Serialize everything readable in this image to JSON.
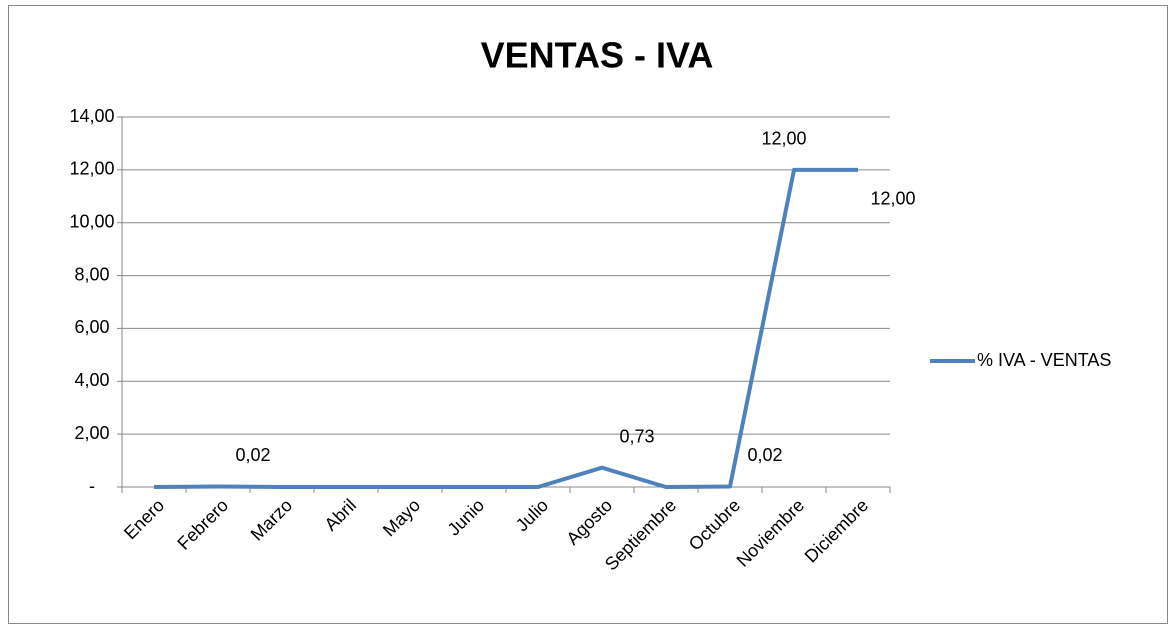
{
  "chart_data": {
    "type": "line",
    "title": "VENTAS - IVA",
    "categories": [
      "Enero",
      "Febrero",
      "Marzo",
      "Abril",
      "Mayo",
      "Junio",
      "Julio",
      "Agosto",
      "Septiembre",
      "Octubre",
      "Noviembre",
      "Diciembre"
    ],
    "series": [
      {
        "name": "% IVA - VENTAS",
        "color": "#4f81bd",
        "values": [
          0,
          0.02,
          0,
          0,
          0,
          0,
          0,
          0.73,
          0,
          0.02,
          12,
          12
        ],
        "value_labels": [
          null,
          "0,02",
          null,
          null,
          null,
          null,
          null,
          "0,73",
          null,
          "0,02",
          "12,00",
          "12,00"
        ]
      }
    ],
    "ylim": [
      0,
      14
    ],
    "yticks": [
      {
        "value": 0,
        "label": "-"
      },
      {
        "value": 2,
        "label": "2,00"
      },
      {
        "value": 4,
        "label": "4,00"
      },
      {
        "value": 6,
        "label": "6,00"
      },
      {
        "value": 8,
        "label": "8,00"
      },
      {
        "value": 10,
        "label": "10,00"
      },
      {
        "value": 12,
        "label": "12,00"
      },
      {
        "value": 14,
        "label": "14,00"
      }
    ],
    "grid": true,
    "legend": "right"
  }
}
